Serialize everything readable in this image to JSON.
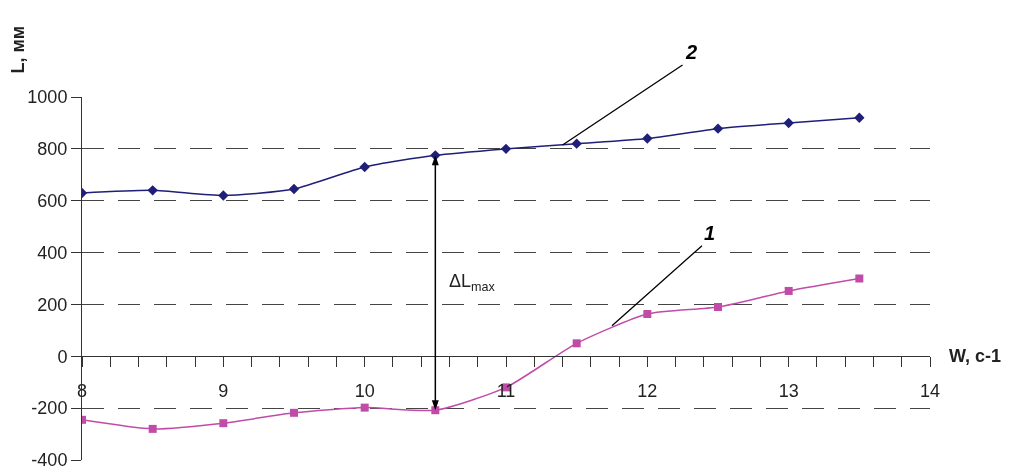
{
  "chart_data": {
    "type": "line",
    "xlabel": "W, с-1",
    "ylabel": "L, мм",
    "x": [
      8,
      8.5,
      9,
      9.5,
      10,
      10.5,
      11,
      11.5,
      12,
      12.5,
      13,
      13.5
    ],
    "series": [
      {
        "name": "2",
        "color": "#1f1f7a",
        "marker": "diamond",
        "values": [
          630,
          640,
          620,
          645,
          730,
          775,
          800,
          820,
          840,
          878,
          900,
          920
        ]
      },
      {
        "name": "1",
        "color": "#c04ca8",
        "marker": "square",
        "values": [
          -245,
          -280,
          -258,
          -218,
          -198,
          -208,
          -120,
          50,
          163,
          190,
          252,
          300
        ]
      }
    ],
    "ref_lines": [
      {
        "axis": "x",
        "value": 10.5,
        "label": "ΔL$_{max}$",
        "color": "#000000"
      }
    ],
    "xlim": [
      8,
      14
    ],
    "xticks": [
      8,
      {
        "value": 8.2,
        "label": null
      },
      {
        "value": 8.4,
        "label": null
      },
      {
        "value": 8.6,
        "label": null
      },
      {
        "value": 8.8,
        "label": null
      },
      9,
      {
        "value": 9.2,
        "label": null
      },
      {
        "value": 9.4,
        "label": null
      },
      {
        "value": 9.6,
        "label": null
      },
      {
        "value": 9.8,
        "label": null
      },
      10,
      {
        "value": 10.2,
        "label": null
      },
      {
        "value": 10.4,
        "label": null
      },
      {
        "value": 10.6,
        "label": null
      },
      {
        "value": 10.8,
        "label": null
      },
      11,
      {
        "value": 11.2,
        "label": null
      },
      {
        "value": 11.4,
        "label": null
      },
      {
        "value": 11.6,
        "label": null
      },
      {
        "value": 11.8,
        "label": null
      },
      12,
      {
        "value": 12.2,
        "label": null
      },
      {
        "value": 12.4,
        "label": null
      },
      {
        "value": 12.6,
        "label": null
      },
      {
        "value": 12.8,
        "label": null
      },
      13,
      {
        "value": 13.2,
        "label": null
      },
      {
        "value": 13.4,
        "label": null
      },
      {
        "value": 13.6,
        "label": null
      },
      {
        "value": 13.8,
        "label": null
      },
      14
    ],
    "ylim": [
      -400,
      1000
    ],
    "yticks": [
      -400,
      -200,
      0,
      200,
      400,
      600,
      800,
      1000
    ],
    "grid": "y",
    "legend": false,
    "line_style": "solid"
  }
}
